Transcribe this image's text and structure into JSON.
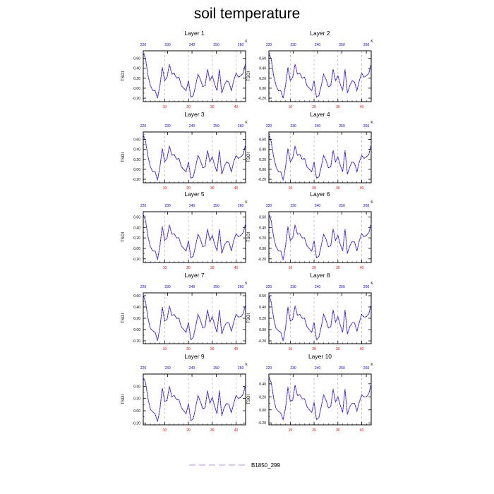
{
  "title": "soil temperature",
  "legend": {
    "label": "B1850_299",
    "color": "#c9a6f0",
    "placement": "bottom-center"
  },
  "series_colors": {
    "line": "#2200cc",
    "overlay": "#9c7bd8"
  },
  "tick_colors": {
    "top": "#0000ff",
    "bottom": "#ff0000"
  },
  "chart_data": {
    "type": "line",
    "ylabel": "TSOI",
    "bottom_axis": {
      "ticks": [
        "10",
        "20",
        "30",
        "40"
      ],
      "values": [
        10,
        20,
        30,
        40
      ],
      "range": [
        1,
        44
      ]
    },
    "top_axis": {
      "ticks": [
        "220",
        "230",
        "240",
        "250",
        "260"
      ],
      "values": [
        220,
        230,
        240,
        250,
        260
      ],
      "unit": "K",
      "range": [
        220,
        262
      ]
    },
    "yticks": [
      [
        "-0.20",
        "0.00",
        "0.20",
        "0.40",
        "0.60"
      ],
      [
        "-0.20",
        "0.00",
        "0.20",
        "0.40",
        "0.60"
      ],
      [
        "-0.20",
        "0.00",
        "0.20",
        "0.40",
        "0.60"
      ],
      [
        "-0.20",
        "0.00",
        "0.20",
        "0.40",
        "0.60"
      ],
      [
        "-0.20",
        "0.00",
        "0.20",
        "0.40",
        "0.60"
      ],
      [
        "-0.20",
        "0.00",
        "0.20",
        "0.40",
        "0.60"
      ],
      [
        "-0.20",
        "0.00",
        "0.20",
        "0.40",
        "0.60"
      ],
      [
        "-0.20",
        "0.00",
        "0.20",
        "0.40",
        "0.60"
      ],
      [
        "-0.20",
        "0.00",
        "0.20",
        "0.40"
      ],
      [
        "-0.20",
        "0.00",
        "0.20",
        "0.40"
      ]
    ],
    "yranges": [
      [
        -0.27,
        0.75
      ],
      [
        -0.27,
        0.75
      ],
      [
        -0.27,
        0.75
      ],
      [
        -0.27,
        0.75
      ],
      [
        -0.27,
        0.7
      ],
      [
        -0.27,
        0.7
      ],
      [
        -0.25,
        0.65
      ],
      [
        -0.25,
        0.65
      ],
      [
        -0.23,
        0.6
      ],
      [
        -0.23,
        0.55
      ]
    ],
    "panels": [
      {
        "title": "Layer 1",
        "values": [
          0.72,
          0.58,
          0.25,
          0.05,
          -0.05,
          -0.05,
          -0.2,
          0.05,
          0.42,
          0.15,
          0.22,
          0.48,
          0.28,
          0.3,
          0.2,
          0.22,
          0.05,
          0.0,
          -0.05,
          0.15,
          -0.18,
          -0.15,
          0.05,
          0.28,
          0.18,
          0.03,
          0.05,
          0.38,
          0.15,
          0.25,
          0.08,
          -0.05,
          0.38,
          -0.1,
          0.05,
          0.15,
          0.12,
          -0.05,
          0.15,
          0.3,
          0.22,
          0.25,
          0.3,
          0.5
        ]
      },
      {
        "title": "Layer 2",
        "values": [
          0.7,
          0.58,
          0.25,
          0.05,
          -0.05,
          -0.05,
          -0.2,
          0.05,
          0.42,
          0.15,
          0.22,
          0.48,
          0.28,
          0.3,
          0.2,
          0.22,
          0.05,
          0.0,
          -0.05,
          0.15,
          -0.18,
          -0.15,
          0.05,
          0.28,
          0.18,
          0.03,
          0.05,
          0.38,
          0.15,
          0.25,
          0.08,
          -0.05,
          0.38,
          -0.1,
          0.05,
          0.15,
          0.12,
          -0.05,
          0.15,
          0.3,
          0.22,
          0.25,
          0.3,
          0.5
        ]
      },
      {
        "title": "Layer 3",
        "values": [
          0.7,
          0.55,
          0.25,
          0.05,
          -0.05,
          -0.05,
          -0.22,
          0.05,
          0.42,
          0.15,
          0.22,
          0.47,
          0.28,
          0.3,
          0.2,
          0.22,
          0.05,
          0.0,
          -0.05,
          0.15,
          -0.18,
          -0.15,
          0.05,
          0.28,
          0.18,
          0.03,
          0.05,
          0.38,
          0.15,
          0.25,
          0.08,
          -0.05,
          0.38,
          -0.1,
          0.05,
          0.15,
          0.12,
          -0.05,
          0.15,
          0.28,
          0.22,
          0.25,
          0.3,
          0.5
        ]
      },
      {
        "title": "Layer 4",
        "values": [
          0.7,
          0.55,
          0.25,
          0.05,
          -0.05,
          -0.05,
          -0.22,
          0.05,
          0.42,
          0.15,
          0.22,
          0.47,
          0.28,
          0.3,
          0.2,
          0.22,
          0.05,
          0.0,
          -0.05,
          0.15,
          -0.18,
          -0.15,
          0.05,
          0.28,
          0.18,
          0.03,
          0.05,
          0.38,
          0.15,
          0.25,
          0.08,
          -0.05,
          0.38,
          -0.1,
          0.05,
          0.15,
          0.12,
          -0.05,
          0.15,
          0.28,
          0.22,
          0.25,
          0.3,
          0.5
        ]
      },
      {
        "title": "Layer 5",
        "values": [
          0.66,
          0.52,
          0.22,
          0.03,
          -0.05,
          -0.05,
          -0.22,
          0.05,
          0.42,
          0.15,
          0.2,
          0.45,
          0.27,
          0.28,
          0.2,
          0.2,
          0.05,
          0.0,
          -0.05,
          0.15,
          -0.18,
          -0.15,
          0.05,
          0.27,
          0.18,
          0.03,
          0.05,
          0.37,
          0.15,
          0.25,
          0.08,
          -0.05,
          0.37,
          -0.1,
          0.05,
          0.13,
          0.12,
          -0.05,
          0.15,
          0.28,
          0.22,
          0.25,
          0.3,
          0.48
        ]
      },
      {
        "title": "Layer 6",
        "values": [
          0.66,
          0.52,
          0.22,
          0.03,
          -0.05,
          -0.05,
          -0.22,
          0.05,
          0.42,
          0.15,
          0.2,
          0.45,
          0.27,
          0.28,
          0.2,
          0.2,
          0.05,
          0.0,
          -0.05,
          0.15,
          -0.18,
          -0.15,
          0.05,
          0.27,
          0.18,
          0.03,
          0.05,
          0.37,
          0.15,
          0.25,
          0.08,
          -0.05,
          0.37,
          -0.1,
          0.05,
          0.13,
          0.12,
          -0.05,
          0.15,
          0.28,
          0.22,
          0.25,
          0.3,
          0.48
        ]
      },
      {
        "title": "Layer 7",
        "values": [
          0.62,
          0.48,
          0.2,
          0.02,
          -0.02,
          -0.05,
          -0.2,
          0.03,
          0.4,
          0.15,
          0.18,
          0.42,
          0.25,
          0.27,
          0.2,
          0.2,
          0.05,
          0.0,
          -0.05,
          0.13,
          -0.18,
          -0.14,
          0.05,
          0.27,
          0.17,
          0.03,
          0.05,
          0.35,
          0.13,
          0.23,
          0.08,
          -0.05,
          0.35,
          -0.08,
          0.05,
          0.12,
          0.12,
          -0.03,
          0.13,
          0.27,
          0.22,
          0.23,
          0.28,
          0.45
        ]
      },
      {
        "title": "Layer 8",
        "values": [
          0.62,
          0.48,
          0.2,
          0.02,
          -0.02,
          -0.05,
          -0.2,
          0.03,
          0.4,
          0.15,
          0.18,
          0.42,
          0.25,
          0.27,
          0.2,
          0.2,
          0.05,
          0.0,
          -0.05,
          0.13,
          -0.18,
          -0.14,
          0.05,
          0.27,
          0.17,
          0.03,
          0.05,
          0.35,
          0.13,
          0.23,
          0.08,
          -0.05,
          0.35,
          -0.08,
          0.05,
          0.12,
          0.12,
          -0.03,
          0.13,
          0.27,
          0.22,
          0.23,
          0.28,
          0.45
        ]
      },
      {
        "title": "Layer 9",
        "values": [
          0.55,
          0.45,
          0.2,
          0.02,
          -0.02,
          -0.05,
          -0.18,
          0.03,
          0.37,
          0.15,
          0.17,
          0.4,
          0.23,
          0.25,
          0.18,
          0.18,
          0.05,
          0.0,
          -0.05,
          0.12,
          -0.16,
          -0.13,
          0.05,
          0.25,
          0.15,
          0.03,
          0.05,
          0.33,
          0.12,
          0.22,
          0.07,
          -0.05,
          0.33,
          -0.08,
          0.05,
          0.12,
          0.1,
          -0.03,
          0.12,
          0.25,
          0.2,
          0.22,
          0.27,
          0.43
        ]
      },
      {
        "title": "Layer 10",
        "values": [
          0.5,
          0.42,
          0.18,
          0.02,
          -0.02,
          -0.05,
          -0.15,
          0.03,
          0.35,
          0.13,
          0.15,
          0.38,
          0.22,
          0.23,
          0.17,
          0.17,
          0.05,
          0.0,
          -0.04,
          0.12,
          -0.15,
          -0.12,
          0.05,
          0.23,
          0.15,
          0.03,
          0.05,
          0.32,
          0.12,
          0.2,
          0.07,
          -0.04,
          0.32,
          -0.07,
          0.05,
          0.1,
          0.1,
          -0.02,
          0.12,
          0.23,
          0.2,
          0.2,
          0.25,
          0.4
        ]
      }
    ]
  }
}
